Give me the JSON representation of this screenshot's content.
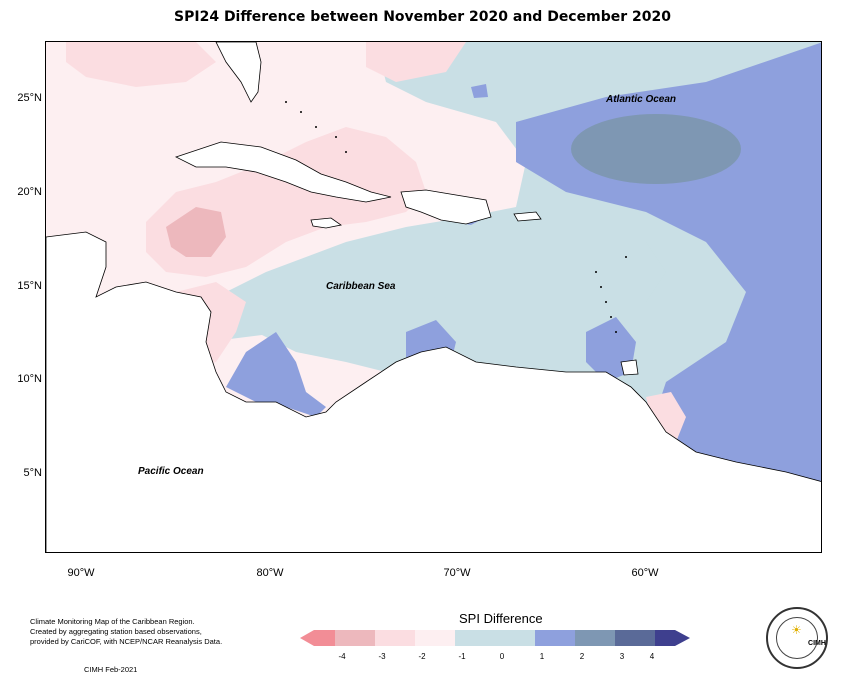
{
  "map": {
    "title": "SPI24 Difference between November 2020 and December 2020",
    "lat_ticks": [
      "25°N",
      "20°N",
      "15°N",
      "10°N",
      "5°N"
    ],
    "lon_ticks": [
      "90°W",
      "80°W",
      "70°W",
      "60°W"
    ],
    "labels": {
      "atlantic": "Atlantic Ocean",
      "caribbean": "Caribbean Sea",
      "pacific": "Pacific Ocean"
    }
  },
  "legend": {
    "title": "SPI Difference",
    "ticks": [
      "-4",
      "-3",
      "-2",
      "-1",
      "0",
      "1",
      "2",
      "3",
      "4"
    ],
    "colors": [
      "#f28d96",
      "#edb8bd",
      "#fbdde1",
      "#fdeff1",
      "#c9dfe5",
      "#8ea0dd",
      "#7e97b3",
      "#5a6a98",
      "#3e3f8e"
    ]
  },
  "footer": {
    "credits_line1": "Climate Monitoring Map of the Caribbean Region.",
    "credits_line2": "Created by aggregating station based observations,",
    "credits_line3": "provided by CariCOF, with NCEP/NCAR Reanalysis Data.",
    "date": "CIMH Feb-2021"
  },
  "logo": {
    "abbr": "CIMH",
    "icon": "sun-icon"
  }
}
